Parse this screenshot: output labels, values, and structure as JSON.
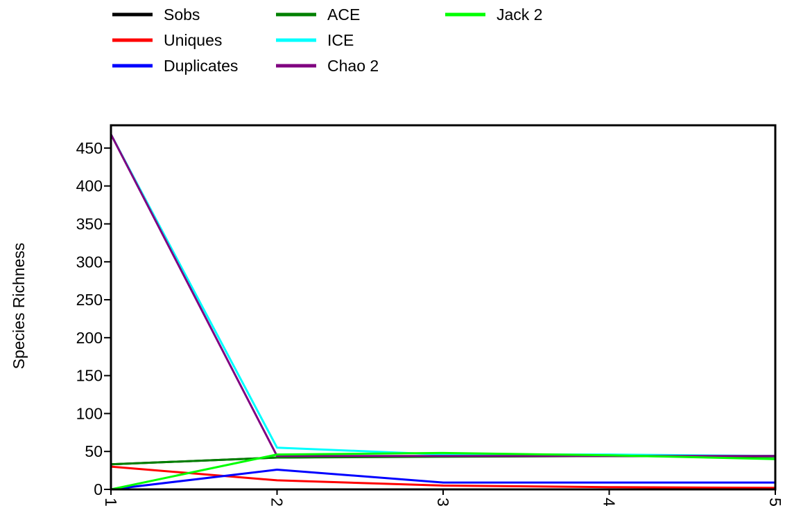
{
  "chart_data": {
    "type": "line",
    "title": "",
    "xlabel": "",
    "ylabel": "Species Richness",
    "x": [
      1,
      2,
      3,
      4,
      5
    ],
    "x_tick_labels": [
      "1",
      "2",
      "3",
      "4",
      "5"
    ],
    "xlim": [
      1,
      5
    ],
    "ylim": [
      0,
      480
    ],
    "y_ticks": [
      0,
      50,
      100,
      150,
      200,
      250,
      300,
      350,
      400,
      450
    ],
    "y_tick_labels": [
      "0",
      "50",
      "100",
      "150",
      "200",
      "250",
      "300",
      "350",
      "400",
      "450"
    ],
    "grid": false,
    "legend_position": "top",
    "series": [
      {
        "name": "Sobs",
        "color": "#000000",
        "values": [
          33,
          42,
          44,
          44,
          44
        ]
      },
      {
        "name": "Uniques",
        "color": "#ff0000",
        "values": [
          30,
          12,
          5,
          3,
          2
        ]
      },
      {
        "name": "Duplicates",
        "color": "#0000ff",
        "values": [
          0,
          26,
          9,
          9,
          9
        ]
      },
      {
        "name": "ACE",
        "color": "#008000",
        "values": [
          33,
          42,
          43,
          44,
          43
        ]
      },
      {
        "name": "ICE",
        "color": "#00ffff",
        "values": [
          468,
          55,
          46,
          46,
          44
        ]
      },
      {
        "name": "Chao 2",
        "color": "#800080",
        "values": [
          468,
          44,
          44,
          44,
          44
        ]
      },
      {
        "name": "Jack 2",
        "color": "#00ff00",
        "values": [
          0,
          46,
          48,
          45,
          40
        ]
      }
    ]
  }
}
